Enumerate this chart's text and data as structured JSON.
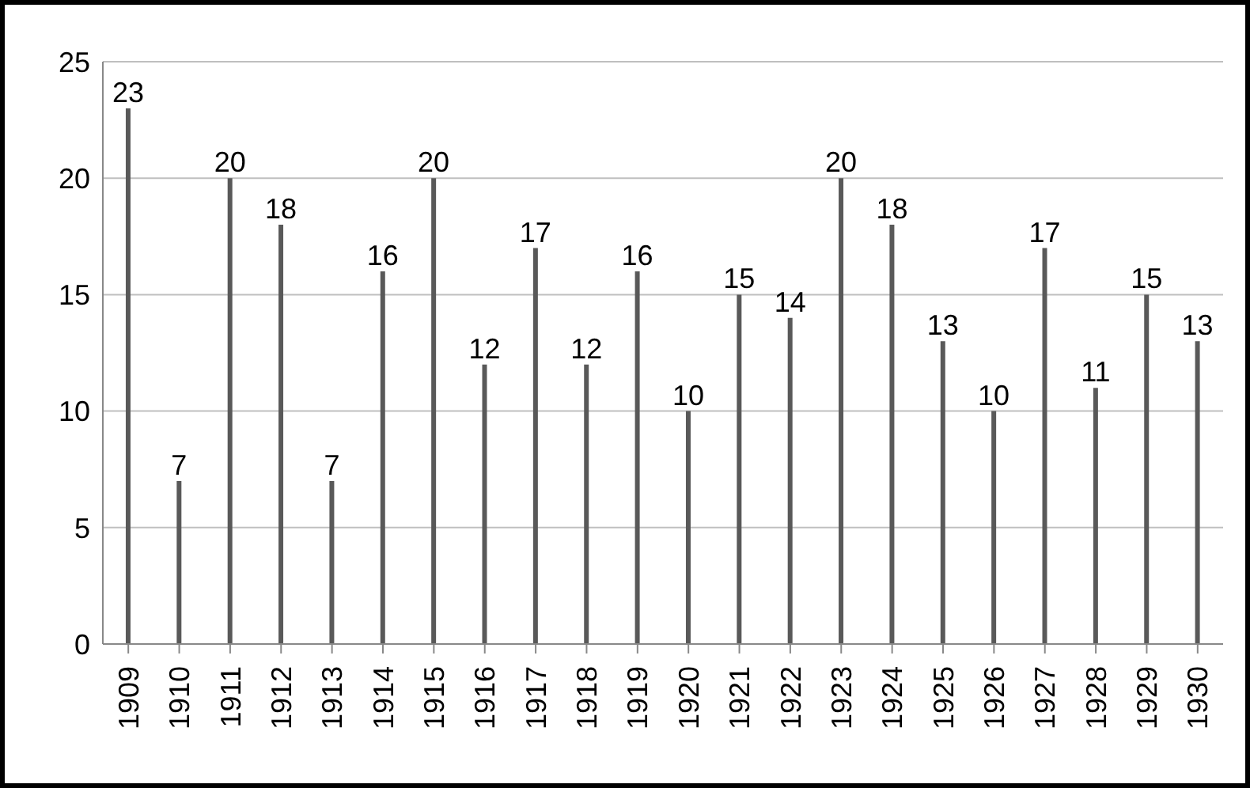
{
  "chart_data": {
    "type": "bar",
    "categories": [
      "1909",
      "1910",
      "1911",
      "1912",
      "1913",
      "1914",
      "1915",
      "1916",
      "1917",
      "1918",
      "1919",
      "1920",
      "1921",
      "1922",
      "1923",
      "1924",
      "1925",
      "1926",
      "1927",
      "1928",
      "1929",
      "1930"
    ],
    "values": [
      23,
      7,
      20,
      18,
      7,
      16,
      20,
      12,
      17,
      12,
      16,
      10,
      15,
      14,
      20,
      18,
      13,
      10,
      17,
      11,
      15,
      13
    ],
    "color": "#595959",
    "ylim": [
      0,
      25
    ],
    "yticks": [
      0,
      5,
      10,
      15,
      20,
      25
    ],
    "grid": "y",
    "data_labels": true
  }
}
